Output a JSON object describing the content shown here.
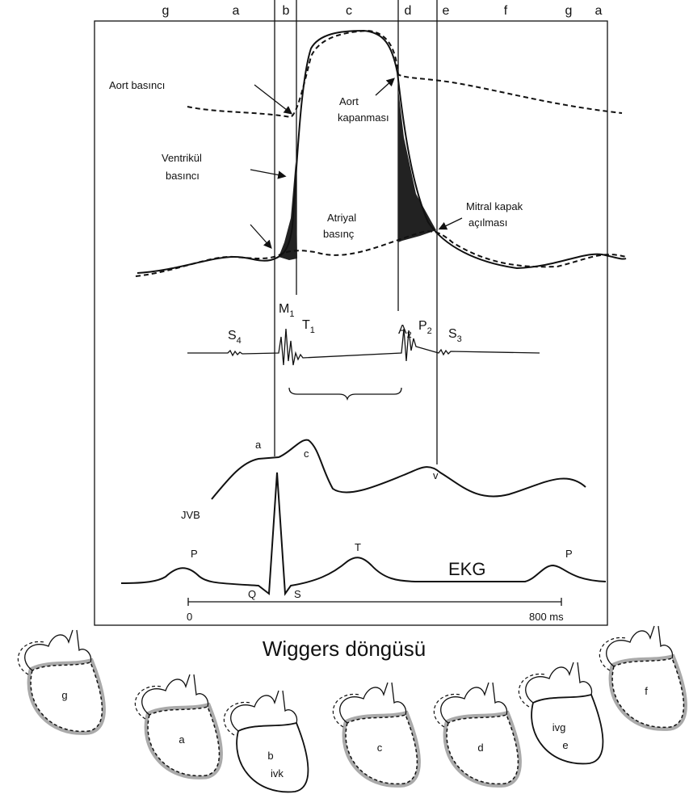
{
  "phases": [
    "g",
    "a",
    "b",
    "c",
    "d",
    "e",
    "f",
    "g",
    "a"
  ],
  "pressure": {
    "aortic": "Aort basıncı",
    "ventricular": [
      "Ventrikül",
      "basıncı"
    ],
    "aortic_closure": [
      "Aort",
      "kapanması"
    ],
    "atrial": [
      "Atriyal",
      "basınç"
    ],
    "mitral_opening": [
      "Mitral kapak",
      "açılması"
    ]
  },
  "heart_sounds": [
    {
      "base": "S",
      "sub": "4"
    },
    {
      "base": "M",
      "sub": "1"
    },
    {
      "base": "T",
      "sub": "1"
    },
    {
      "base": "A",
      "sub": "2"
    },
    {
      "base": "P",
      "sub": "2"
    },
    {
      "base": "S",
      "sub": "3"
    }
  ],
  "jvp": {
    "label": "JVB",
    "waves": [
      "a",
      "c",
      "v"
    ]
  },
  "ecg": {
    "label": "EKG",
    "waves": [
      "P",
      "Q",
      "S",
      "T",
      "P"
    ]
  },
  "scale": [
    "0",
    "800 ms"
  ],
  "title": "Wiggers döngüsü",
  "hearts": [
    [
      "g"
    ],
    [
      "a"
    ],
    [
      "b",
      "ivk"
    ],
    [
      "c"
    ],
    [
      "d"
    ],
    [
      "ivg",
      "e"
    ],
    [
      "f"
    ]
  ]
}
